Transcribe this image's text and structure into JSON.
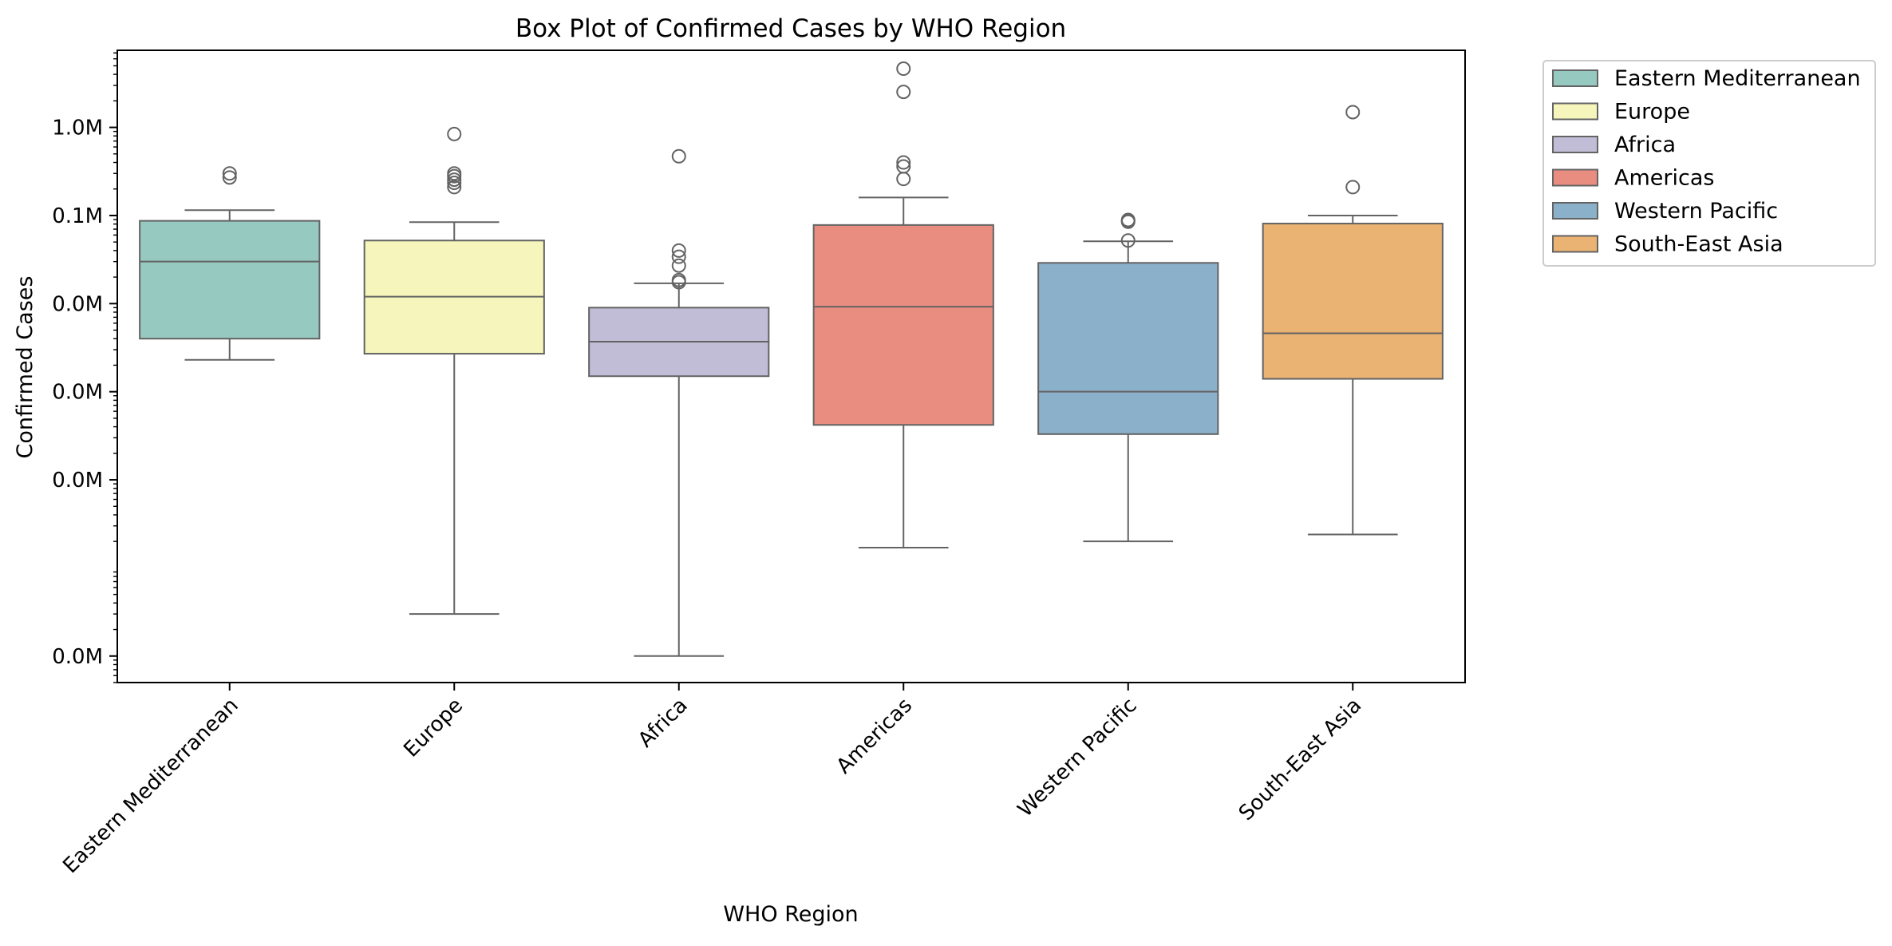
{
  "chart_data": {
    "type": "box",
    "title": "Box Plot of Confirmed Cases by WHO Region",
    "xlabel": "WHO Region",
    "ylabel": "Confirmed Cases",
    "yscale": "log",
    "ylim": [
      0.5,
      7500000
    ],
    "yticks": [
      {
        "value": 1,
        "label": "0.0M"
      },
      {
        "value": 100,
        "label": "0.0M"
      },
      {
        "value": 1000,
        "label": "0.0M"
      },
      {
        "value": 10000,
        "label": "0.0M"
      },
      {
        "value": 100000,
        "label": "0.1M"
      },
      {
        "value": 1000000,
        "label": "1.0M"
      }
    ],
    "grid": false,
    "legend_position": "outside-right",
    "categories": [
      "Eastern Mediterranean",
      "Europe",
      "Africa",
      "Americas",
      "Western Pacific",
      "South-East Asia"
    ],
    "series": [
      {
        "name": "Eastern Mediterranean",
        "color": "#96CAC0",
        "whisker_low": 2300,
        "q1": 4000,
        "median": 30000,
        "q3": 87000,
        "whisker_high": 115000,
        "outliers": [
          270000,
          300000
        ]
      },
      {
        "name": "Europe",
        "color": "#F6F6BC",
        "whisker_low": 3,
        "q1": 2700,
        "median": 12000,
        "q3": 52000,
        "whisker_high": 84000,
        "outliers": [
          210000,
          235000,
          255000,
          280000,
          300000,
          840000
        ]
      },
      {
        "name": "Africa",
        "color": "#C1BDD6",
        "whisker_low": 1,
        "q1": 1500,
        "median": 3700,
        "q3": 9000,
        "whisker_high": 17000,
        "outliers": [
          17500,
          18500,
          27000,
          34000,
          40000,
          470000
        ]
      },
      {
        "name": "Americas",
        "color": "#E98D80",
        "whisker_low": 17,
        "q1": 420,
        "median": 9200,
        "q3": 78000,
        "whisker_high": 160000,
        "outliers": [
          260000,
          360000,
          400000,
          2530000,
          4640000
        ]
      },
      {
        "name": "Western Pacific",
        "color": "#8BB0C9",
        "whisker_low": 20,
        "q1": 330,
        "median": 1000,
        "q3": 29000,
        "whisker_high": 51000,
        "outliers": [
          52000,
          85000,
          87000,
          89000
        ]
      },
      {
        "name": "South-East Asia",
        "color": "#EAB374",
        "whisker_low": 24,
        "q1": 1400,
        "median": 4600,
        "q3": 81000,
        "whisker_high": 100000,
        "outliers": [
          210000,
          1490000
        ]
      }
    ]
  }
}
